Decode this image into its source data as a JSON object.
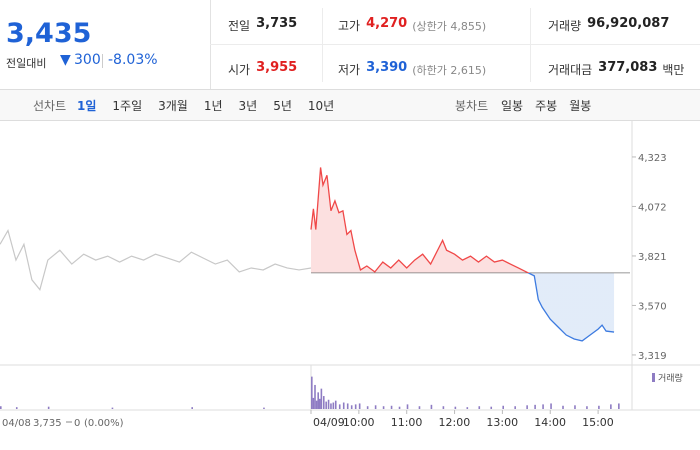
{
  "header": {
    "price": "3,435",
    "change_label": "전일대비",
    "change": "300",
    "change_pct": "-8.03%",
    "stats": [
      {
        "label": "전일",
        "value": "3,735"
      },
      {
        "label": "고가",
        "value": "4,270",
        "extra": "(상한가 4,855)"
      },
      {
        "label": "거래량",
        "value": "96,920,087"
      },
      {
        "label": "시가",
        "value": "3,955"
      },
      {
        "label": "저가",
        "value": "3,390",
        "extra": "(하한가 2,615)"
      },
      {
        "label": "거래대금",
        "value": "377,083",
        "unit": "백만"
      }
    ]
  },
  "tabs": {
    "label": "선차트",
    "items": [
      "1일",
      "1주일",
      "3개월",
      "1년",
      "3년",
      "5년",
      "10년"
    ],
    "candle_label": "봉차트",
    "candle_items": [
      "일봉",
      "주봉",
      "월봉"
    ]
  },
  "chart_data": {
    "type": "line",
    "baseline": 3735,
    "xlim": [
      -390,
      400
    ],
    "ylim": [
      3268,
      4485
    ],
    "yticks": [
      {
        "value": 3319,
        "label": "3,319"
      },
      {
        "value": 3570,
        "label": "3,570"
      },
      {
        "value": 3821,
        "label": "3,821"
      },
      {
        "value": 4072,
        "label": "4,072"
      },
      {
        "value": 4323,
        "label": "4,323"
      }
    ],
    "xticks": [
      {
        "value": 0,
        "label": "04/09"
      },
      {
        "value": 60,
        "label": "10:00"
      },
      {
        "value": 120,
        "label": "11:00"
      },
      {
        "value": 180,
        "label": "12:00"
      },
      {
        "value": 240,
        "label": "13:00"
      },
      {
        "value": 300,
        "label": "14:00"
      },
      {
        "value": 360,
        "label": "15:00"
      }
    ],
    "series": [
      {
        "color": "#c8c8c8",
        "x": [
          -390,
          -380,
          -370,
          -360,
          -350,
          -340,
          -330,
          -315,
          -300,
          -285,
          -270,
          -255,
          -240,
          -225,
          -210,
          -195,
          -180,
          -165,
          -150,
          -135,
          -120,
          -105,
          -90,
          -75,
          -60,
          -45,
          -30,
          -15,
          0
        ],
        "values": [
          3880,
          3950,
          3800,
          3880,
          3700,
          3650,
          3800,
          3850,
          3780,
          3830,
          3800,
          3820,
          3790,
          3820,
          3800,
          3830,
          3810,
          3790,
          3840,
          3810,
          3780,
          3800,
          3740,
          3760,
          3750,
          3780,
          3760,
          3750,
          3760
        ]
      },
      {
        "color_up": "#f04848",
        "color_down": "#3d7be0",
        "fill_up": "#fbdada",
        "fill_down": "#dde8f8",
        "x": [
          0,
          3,
          6,
          12,
          15,
          20,
          25,
          30,
          35,
          40,
          45,
          50,
          55,
          62,
          70,
          80,
          90,
          100,
          110,
          120,
          130,
          140,
          150,
          160,
          165,
          170,
          180,
          190,
          200,
          210,
          220,
          230,
          240,
          250,
          260,
          270,
          280,
          285,
          290,
          300,
          310,
          320,
          330,
          340,
          350,
          360,
          365,
          370,
          380
        ],
        "values": [
          3955,
          4060,
          3955,
          4270,
          4180,
          4230,
          4050,
          4100,
          4040,
          4050,
          3930,
          3950,
          3850,
          3750,
          3770,
          3740,
          3790,
          3760,
          3800,
          3760,
          3800,
          3830,
          3780,
          3860,
          3900,
          3850,
          3830,
          3800,
          3820,
          3790,
          3820,
          3790,
          3800,
          3780,
          3760,
          3740,
          3720,
          3600,
          3560,
          3500,
          3460,
          3420,
          3400,
          3390,
          3420,
          3450,
          3470,
          3440,
          3435
        ]
      }
    ],
    "volume": {
      "name": "거래량",
      "color": "#8e7cc3",
      "ylim": [
        0,
        4000000
      ],
      "x": [
        -390,
        -370,
        -330,
        -250,
        -150,
        -60,
        0,
        2,
        4,
        6,
        8,
        10,
        12,
        15,
        18,
        21,
        24,
        27,
        30,
        35,
        40,
        45,
        50,
        55,
        60,
        70,
        80,
        90,
        100,
        110,
        120,
        135,
        150,
        165,
        180,
        195,
        210,
        225,
        240,
        255,
        270,
        280,
        290,
        300,
        315,
        330,
        345,
        360,
        375,
        385
      ],
      "values": [
        300000,
        200000,
        250000,
        150000,
        200000,
        150000,
        3500000,
        1200000,
        2600000,
        900000,
        1800000,
        1100000,
        2200000,
        1400000,
        800000,
        1000000,
        600000,
        700000,
        900000,
        500000,
        700000,
        600000,
        400000,
        500000,
        600000,
        300000,
        400000,
        300000,
        350000,
        250000,
        500000,
        300000,
        450000,
        300000,
        250000,
        200000,
        300000,
        250000,
        350000,
        300000,
        400000,
        450000,
        500000,
        600000,
        350000,
        400000,
        300000,
        350000,
        500000,
        600000
      ]
    },
    "footer": {
      "date": "04/08",
      "close": "3,735",
      "change": "0",
      "pct": "(0.00%)"
    }
  }
}
